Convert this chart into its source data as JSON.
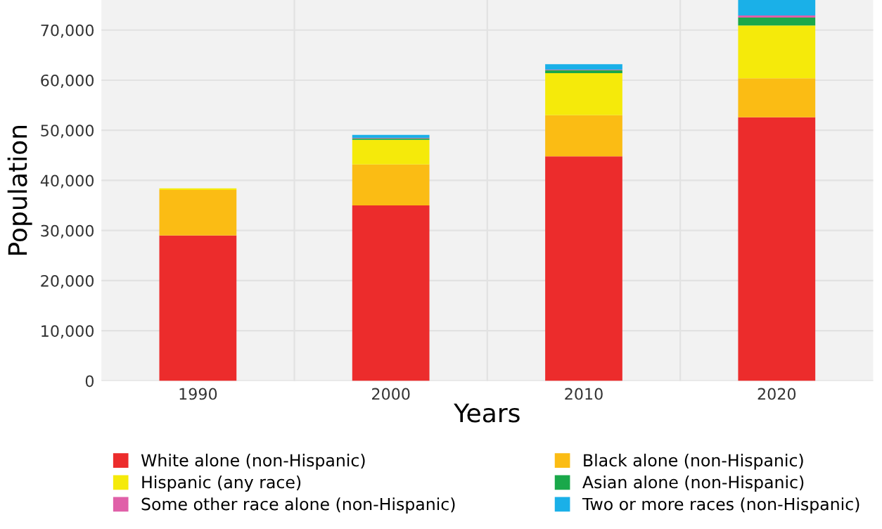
{
  "chart_data": {
    "type": "bar",
    "stacked": true,
    "xlabel": "Years",
    "ylabel": "Population",
    "categories": [
      "1990",
      "2000",
      "2010",
      "2020"
    ],
    "series": [
      {
        "name": "White alone (non-Hispanic)",
        "color": "#ec2c2c",
        "values": [
          29000,
          35000,
          44800,
          52600
        ]
      },
      {
        "name": "Black alone (non-Hispanic)",
        "color": "#fbbc14",
        "values": [
          9100,
          8200,
          8200,
          7800
        ]
      },
      {
        "name": "Hispanic (any race)",
        "color": "#f5ea0a",
        "values": [
          300,
          4900,
          8400,
          10500
        ]
      },
      {
        "name": "Asian alone (non-Hispanic)",
        "color": "#1aa84a",
        "values": [
          null,
          300,
          600,
          1600
        ]
      },
      {
        "name": "Some other race alone (non-Hispanic)",
        "color": "#e060a8",
        "values": [
          0,
          100,
          100,
          400
        ]
      },
      {
        "name": "Two or more races (non-Hispanic)",
        "color": "#1ab0e8",
        "values": [
          null,
          600,
          1100,
          3100
        ]
      }
    ],
    "ylim": [
      0,
      76000
    ],
    "yticks": [
      {
        "value": 0,
        "label": "0"
      },
      {
        "value": 10000,
        "label": "10,000"
      },
      {
        "value": 20000,
        "label": "20,000"
      },
      {
        "value": 30000,
        "label": "30,000"
      },
      {
        "value": 40000,
        "label": "40,000"
      },
      {
        "value": 50000,
        "label": "50,000"
      },
      {
        "value": 60000,
        "label": "60,000"
      },
      {
        "value": 70000,
        "label": "70,000"
      }
    ],
    "grid": true,
    "legend": "bottom"
  }
}
